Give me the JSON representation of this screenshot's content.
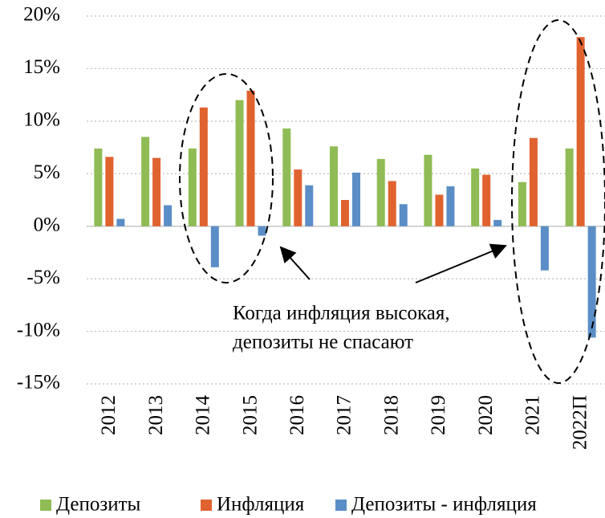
{
  "chart_data": {
    "type": "bar",
    "categories": [
      "2012",
      "2013",
      "2014",
      "2015",
      "2016",
      "2017",
      "2018",
      "2019",
      "2020",
      "2021",
      "2022П"
    ],
    "series": [
      {
        "name": "Депозиты",
        "color": "#8fbc55",
        "values": [
          7.4,
          8.5,
          7.4,
          12.0,
          9.3,
          7.6,
          6.4,
          6.8,
          5.5,
          4.2,
          7.4
        ]
      },
      {
        "name": "Инфляция",
        "color": "#e0622f",
        "values": [
          6.6,
          6.5,
          11.3,
          12.9,
          5.4,
          2.5,
          4.3,
          3.0,
          4.9,
          8.4,
          18.0
        ]
      },
      {
        "name": "Депозиты - инфляция",
        "color": "#5b8ec6",
        "values": [
          0.7,
          2.0,
          -3.9,
          -0.9,
          3.9,
          5.1,
          2.1,
          3.8,
          0.6,
          -4.2,
          -10.6
        ]
      }
    ],
    "ylim": [
      -15,
      20
    ],
    "yticks": [
      {
        "value": -15,
        "label": "-15%"
      },
      {
        "value": -10,
        "label": "-10%"
      },
      {
        "value": -5,
        "label": "-5%"
      },
      {
        "value": 0,
        "label": "0%"
      },
      {
        "value": 5,
        "label": "5%"
      },
      {
        "value": 10,
        "label": "10%"
      },
      {
        "value": 15,
        "label": "15%"
      },
      {
        "value": 20,
        "label": "20%"
      }
    ],
    "grid": true,
    "legend": "bottom",
    "annotation": [
      "Когда инфляция высокая,",
      "депозиты не спасают"
    ]
  }
}
